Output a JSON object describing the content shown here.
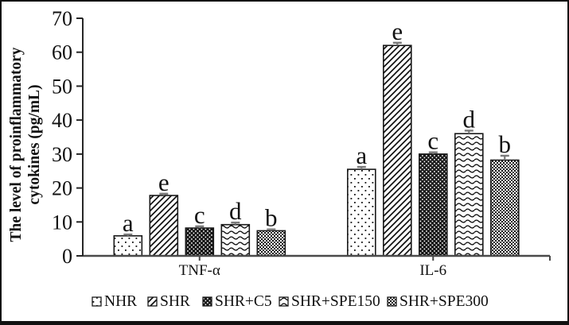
{
  "figure": {
    "kind": "grouped-bar-figure"
  },
  "chart_data": {
    "type": "bar",
    "title": "",
    "ylabel_lines": [
      "The level of proinflammatory",
      "cytokines (pg/mL)"
    ],
    "xlabel": "",
    "ylim": [
      0,
      70
    ],
    "yticks": [
      0,
      10,
      20,
      30,
      40,
      50,
      60,
      70
    ],
    "grid": false,
    "legend_position": "bottom",
    "categories": [
      "TNF-α",
      "IL-6"
    ],
    "series": [
      {
        "name": "NHR",
        "pattern": "dots-sparse",
        "values": [
          5.9,
          25.5
        ],
        "errors": [
          0.4,
          0.7
        ],
        "letters": [
          "a",
          "a"
        ]
      },
      {
        "name": "SHR",
        "pattern": "diagonal-hatch",
        "values": [
          17.8,
          62.0
        ],
        "errors": [
          0.5,
          0.8
        ],
        "letters": [
          "e",
          "e"
        ]
      },
      {
        "name": "SHR+C5",
        "pattern": "dark-dots",
        "values": [
          8.2,
          30.0
        ],
        "errors": [
          0.5,
          0.5
        ],
        "letters": [
          "c",
          "c"
        ]
      },
      {
        "name": "SHR+SPE150",
        "pattern": "waves",
        "values": [
          9.2,
          36.0
        ],
        "errors": [
          0.6,
          0.9
        ],
        "letters": [
          "d",
          "d"
        ]
      },
      {
        "name": "SHR+SPE300",
        "pattern": "fine-checker",
        "values": [
          7.4,
          28.2
        ],
        "errors": [
          0.4,
          1.3
        ],
        "letters": [
          "b",
          "b"
        ]
      }
    ],
    "colors": {
      "background": "#ffffff",
      "frame_border": "#111111",
      "bar_stroke": "#1a1a1a",
      "axis": "#4a4a4a",
      "error_bar": "#7a7a7a",
      "text": "#111111"
    }
  }
}
